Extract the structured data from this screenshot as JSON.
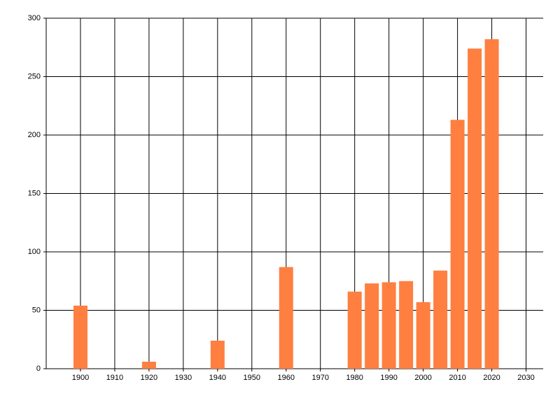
{
  "chart_data": {
    "type": "bar",
    "x": [
      1900,
      1920,
      1940,
      1960,
      1980,
      1985,
      1990,
      1995,
      2000,
      2005,
      2010,
      2015,
      2020
    ],
    "values": [
      54,
      6,
      24,
      87,
      66,
      73,
      74,
      75,
      57,
      84,
      213,
      274,
      282
    ],
    "color": "#ff7f40",
    "xlim": [
      1890,
      2035
    ],
    "xticks": [
      1900,
      1910,
      1920,
      1930,
      1940,
      1950,
      1960,
      1970,
      1980,
      1990,
      2000,
      2010,
      2020,
      2030
    ],
    "ylim": [
      0,
      300
    ],
    "yticks": [
      0,
      50,
      100,
      150,
      200,
      250,
      300
    ],
    "grid": true
  }
}
